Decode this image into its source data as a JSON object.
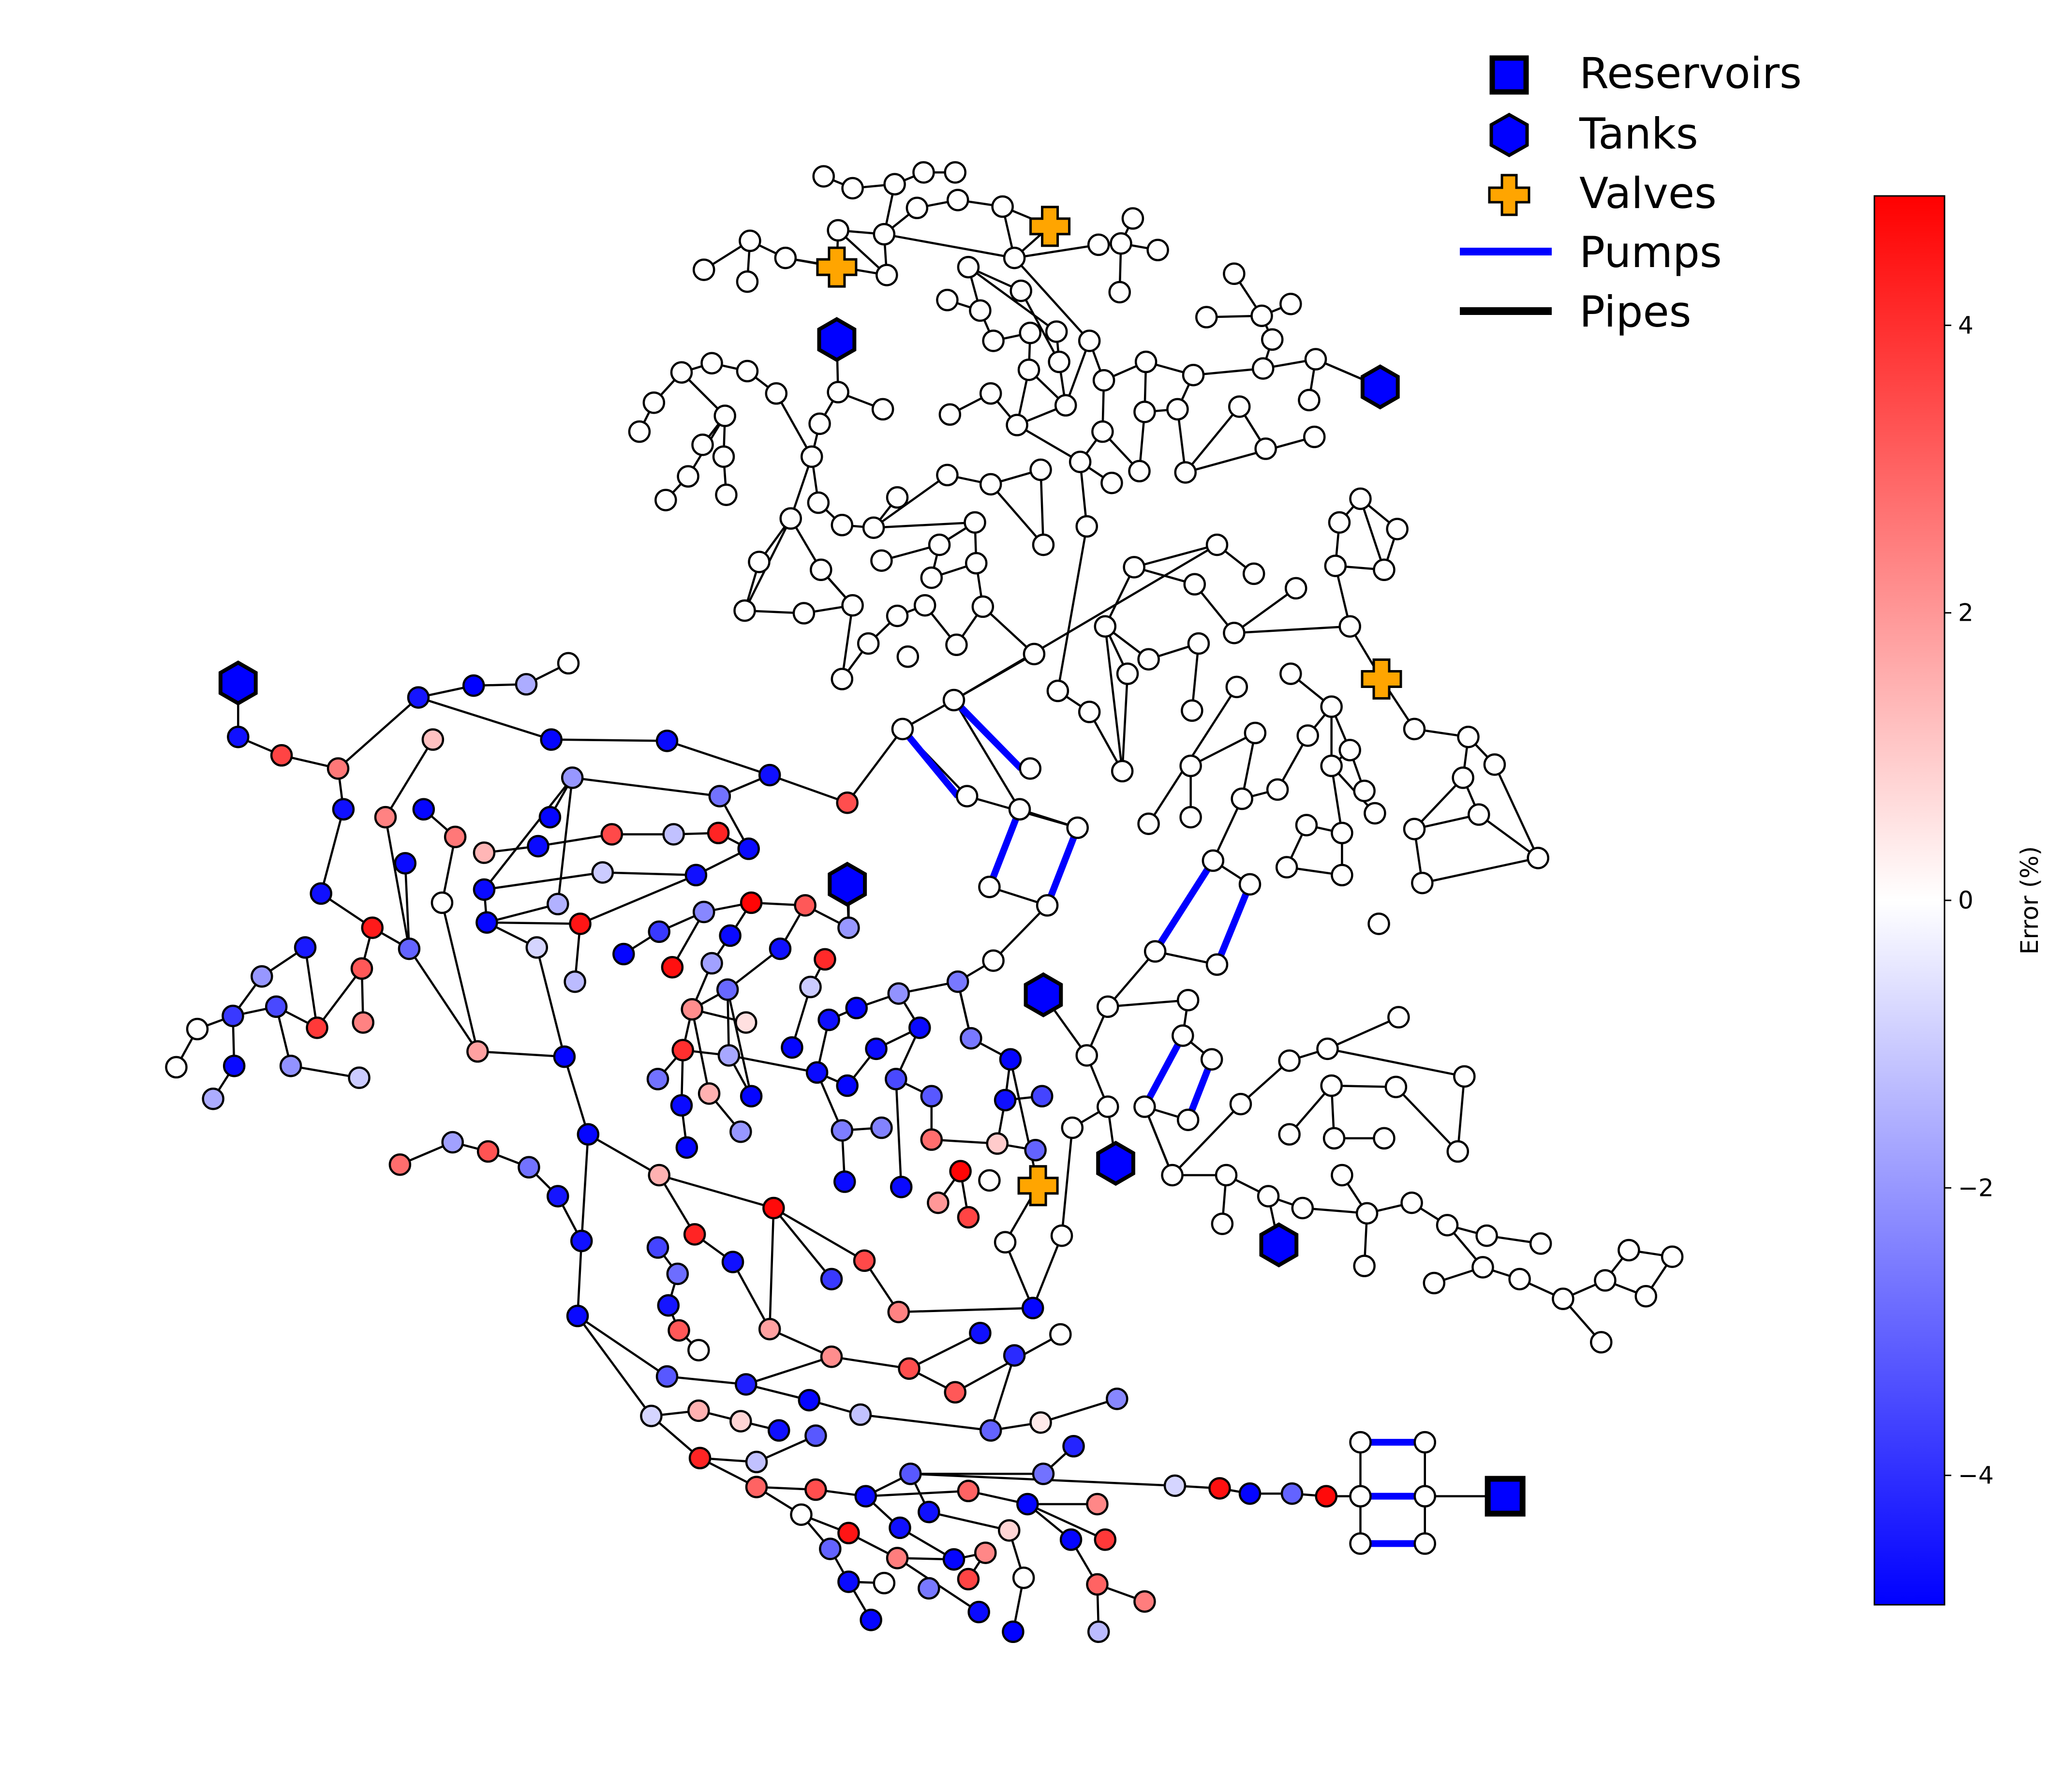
{
  "legend": {
    "reservoirs": "Reservoirs",
    "tanks": "Tanks",
    "valves": "Valves",
    "pumps": "Pumps",
    "pipes": "Pipes"
  },
  "colorbar": {
    "label": "Error (%)",
    "min": -4.9,
    "max": 4.9,
    "ticks": [
      4,
      2,
      0,
      -2,
      -4
    ],
    "tick_labels": [
      "4",
      "2",
      "0",
      "−2",
      "−4"
    ],
    "colors": {
      "low": "#0000ff",
      "mid": "#ffffff",
      "high": "#ff0000"
    }
  },
  "colors": {
    "pipe": "#000000",
    "pump": "#0000ff",
    "tank": "#0000ff",
    "reservoir": "#0000ff",
    "valve": "#ffa500"
  },
  "icons": {
    "reservoir": "square-icon",
    "tank": "hexagon-icon",
    "valve": "plus-icon"
  }
}
